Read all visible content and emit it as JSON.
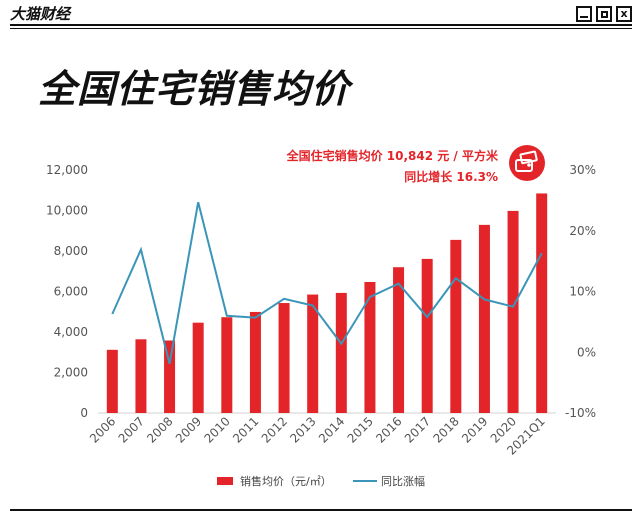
{
  "header": {
    "brand": "大猫财经",
    "controls": [
      "minimize",
      "maximize",
      "close"
    ],
    "close_label": "x"
  },
  "page_title": "全国住宅销售均价",
  "colors": {
    "bar": "#e3252a",
    "line": "#3a95b9",
    "annotation": "#e3252a",
    "text": "#555555"
  },
  "annotation": {
    "line1": "全国住宅销售均价 10,842 元 / 平方米",
    "line2": "同比增长 16.3%",
    "icon": "money-wallet-icon"
  },
  "chart_data": {
    "type": "bar",
    "title": "全国住宅销售均价",
    "categories": [
      "2006",
      "2007",
      "2008",
      "2009",
      "2010",
      "2011",
      "2012",
      "2013",
      "2014",
      "2015",
      "2016",
      "2017",
      "2018",
      "2019",
      "2020",
      "2021Q1"
    ],
    "series": [
      {
        "name": "销售均价（元/㎡）",
        "type": "bar",
        "axis": "left",
        "values": [
          3120,
          3640,
          3580,
          4460,
          4730,
          4990,
          5430,
          5850,
          5930,
          6470,
          7200,
          7610,
          8550,
          9290,
          9980,
          10842
        ]
      },
      {
        "name": "同比涨幅",
        "type": "line",
        "axis": "right",
        "values": [
          6.3,
          16.9,
          -1.9,
          24.7,
          6.0,
          5.7,
          8.8,
          7.7,
          1.4,
          9.1,
          11.3,
          5.8,
          12.2,
          8.7,
          7.5,
          16.3
        ]
      }
    ],
    "left_axis": {
      "ylim": [
        0,
        12000
      ],
      "ticks": [
        0,
        2000,
        4000,
        6000,
        8000,
        10000,
        12000
      ],
      "tick_labels": [
        "0",
        "2,000",
        "4,000",
        "6,000",
        "8,000",
        "10,000",
        "12,000"
      ]
    },
    "right_axis": {
      "ylim": [
        -10,
        30
      ],
      "ticks": [
        -10,
        0,
        10,
        20,
        30
      ],
      "tick_labels": [
        "-10%",
        "0%",
        "10%",
        "20%",
        "30%"
      ]
    },
    "legend": {
      "position": "bottom-center",
      "entries": [
        "销售均价（元/㎡）",
        "同比涨幅"
      ]
    }
  }
}
